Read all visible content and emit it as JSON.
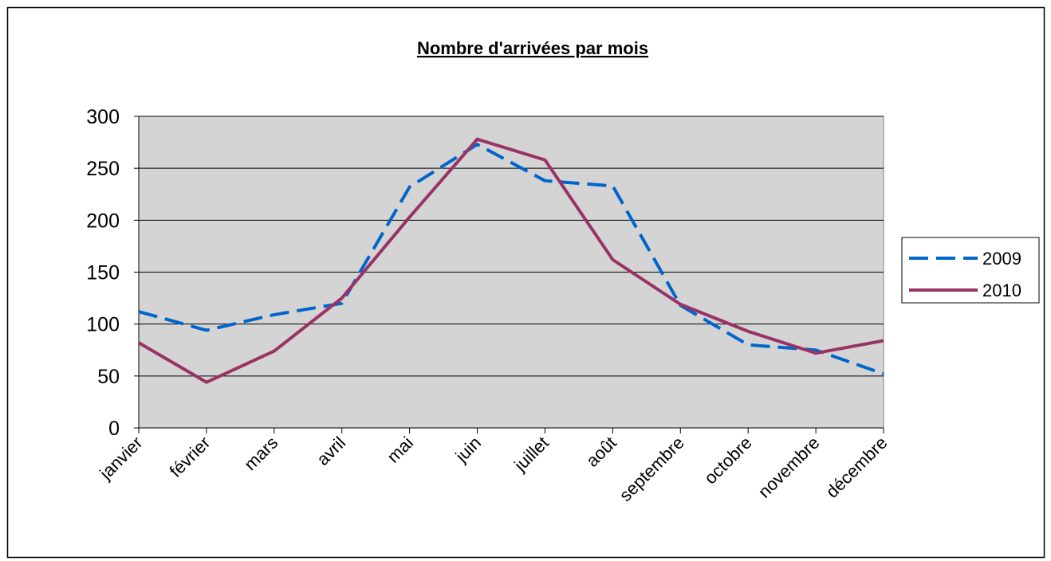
{
  "chart_data": {
    "type": "line",
    "title": "Nombre d'arrivées par mois",
    "categories": [
      "janvier",
      "février",
      "mars",
      "avril",
      "mai",
      "juin",
      "juillet",
      "août",
      "septembre",
      "octobre",
      "novembre",
      "décembre"
    ],
    "series": [
      {
        "name": "2009",
        "color": "#0066cc",
        "dashed": true,
        "values": [
          112,
          94,
          109,
          120,
          232,
          273,
          238,
          233,
          118,
          80,
          75,
          52
        ]
      },
      {
        "name": "2010",
        "color": "#993366",
        "dashed": false,
        "values": [
          82,
          44,
          74,
          125,
          203,
          278,
          258,
          162,
          119,
          93,
          72,
          84
        ]
      }
    ],
    "ylim": [
      0,
      300
    ],
    "yticks": [
      0,
      50,
      100,
      150,
      200,
      250,
      300
    ],
    "grid": true,
    "legend": "right"
  }
}
